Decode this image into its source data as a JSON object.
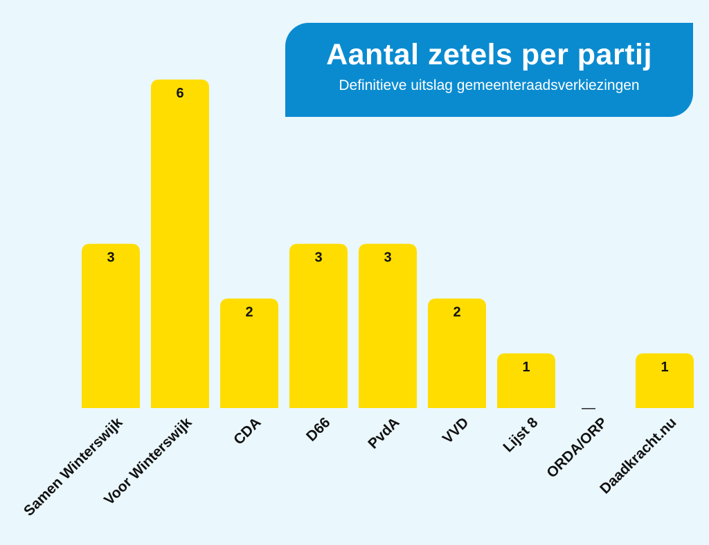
{
  "chart_data": {
    "type": "bar",
    "title": "Aantal zetels per partij",
    "subtitle": "Definitieve uitslag gemeenteraadsverkiezingen",
    "categories": [
      "Samen Winterswijk",
      "Voor Winterswijk",
      "CDA",
      "D66",
      "PvdA",
      "VVD",
      "Lijst 8",
      "ORDA/ORP",
      "Daadkracht.nu"
    ],
    "values": [
      3,
      6,
      2,
      3,
      3,
      2,
      1,
      0,
      1
    ],
    "data_labels": [
      "3",
      "6",
      "2",
      "3",
      "3",
      "2",
      "1",
      "—",
      "1"
    ],
    "xlabel": "",
    "ylabel": "",
    "ylim": [
      0,
      6
    ],
    "grid": false,
    "colors": {
      "bar": "#ffdd00",
      "background": "#eaf7fd",
      "title_box": "#0a8bd0"
    }
  }
}
